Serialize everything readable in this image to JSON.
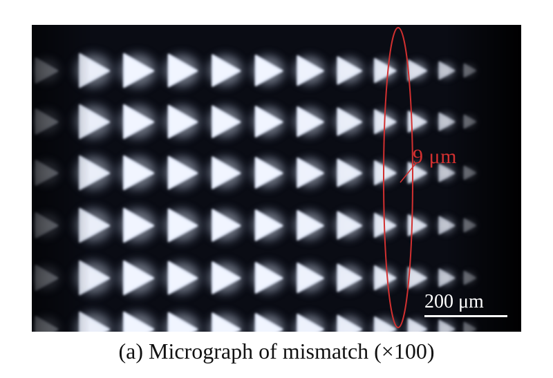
{
  "figure": {
    "caption": "(a) Micrograph of mismatch (×100)",
    "annotation": "9 μm",
    "scale_bar_label": "200 μm",
    "colors": {
      "annotation": "#d23030",
      "background": "#0a0c14",
      "highlight": "#f4f8ff",
      "scale": "#ffffff"
    }
  }
}
